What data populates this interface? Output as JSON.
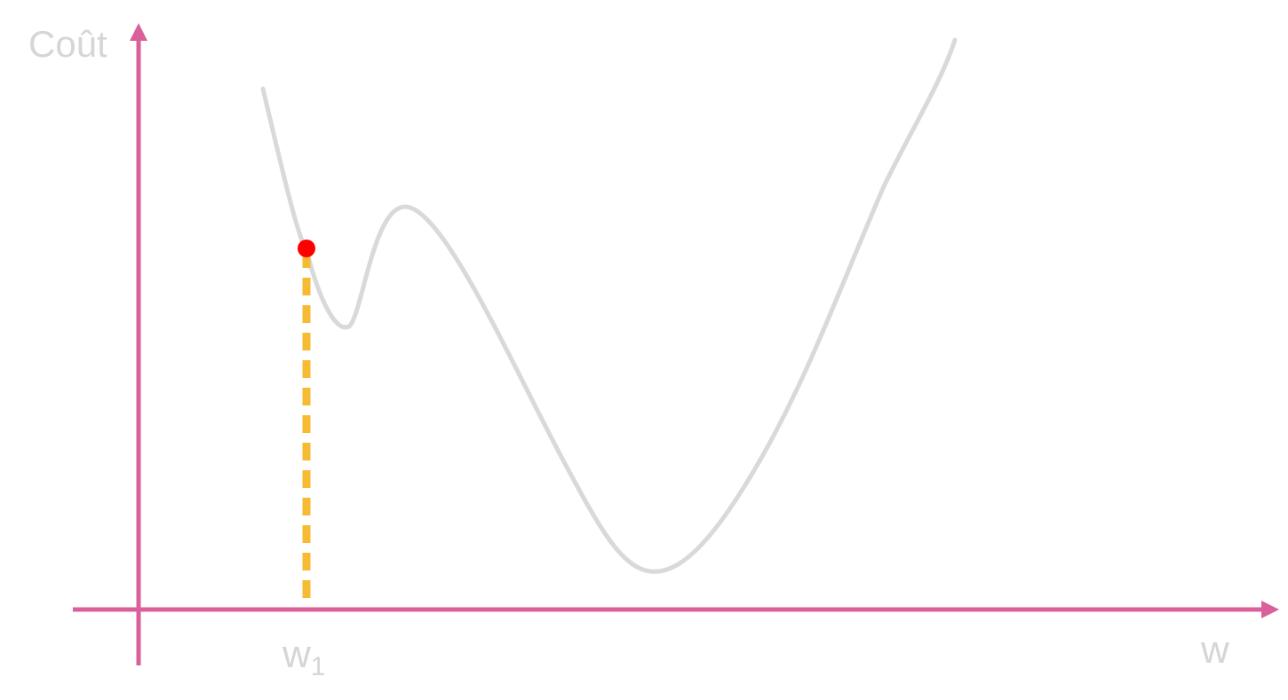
{
  "axes": {
    "y_label": "Coût",
    "x_label": "w",
    "color": "#d9609a"
  },
  "marker": {
    "label_main": "w",
    "label_sub": "1",
    "point_color": "#ff0000",
    "dash_color": "#f6bb33"
  },
  "curve": {
    "color": "#d9d9d9"
  },
  "label_color": "#d6d6d6"
}
